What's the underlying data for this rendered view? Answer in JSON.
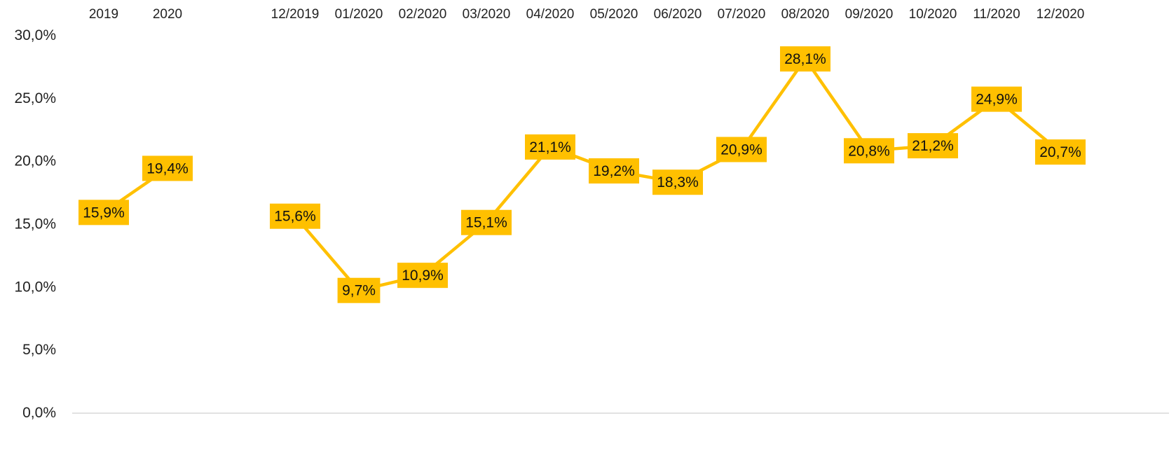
{
  "chart_data": {
    "type": "line",
    "ylim": [
      0,
      30
    ],
    "y_ticks": [
      "0,0%",
      "5,0%",
      "10,0%",
      "15,0%",
      "20,0%",
      "25,0%",
      "30,0%"
    ],
    "grid": false,
    "legend": "none",
    "colors": {
      "line": "#FFC000",
      "label_bg": "#FFC000",
      "axis": "#d9d9d9",
      "text": "#222222"
    },
    "categories": [
      "2019",
      "2020",
      "",
      "12/2019",
      "01/2020",
      "02/2020",
      "03/2020",
      "04/2020",
      "05/2020",
      "06/2020",
      "07/2020",
      "08/2020",
      "09/2020",
      "10/2020",
      "11/2020",
      "12/2020"
    ],
    "segments": [
      {
        "values": [
          15.9,
          19.4
        ],
        "labels": [
          "15,9%",
          "19,4%"
        ],
        "start_index": 0
      },
      {
        "values": [
          15.6,
          9.7,
          10.9,
          15.1,
          21.1,
          19.2,
          18.3,
          20.9,
          28.1,
          20.8,
          21.2,
          24.9,
          20.7
        ],
        "labels": [
          "15,6%",
          "9,7%",
          "10,9%",
          "15,1%",
          "21,1%",
          "19,2%",
          "18,3%",
          "20,9%",
          "28,1%",
          "20,8%",
          "21,2%",
          "24,9%",
          "20,7%"
        ],
        "start_index": 3
      }
    ]
  }
}
